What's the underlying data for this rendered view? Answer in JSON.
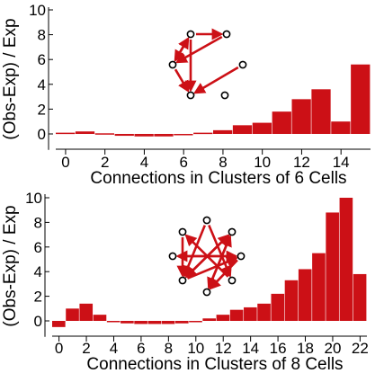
{
  "chart_data": [
    {
      "type": "bar",
      "xlabel": "Connections in Clusters of 6 Cells",
      "ylabel": "(Obs-Exp) / Exp",
      "xlim": [
        0,
        15
      ],
      "ylim": [
        -1,
        10
      ],
      "xticks": [
        "0",
        "2",
        "4",
        "6",
        "8",
        "10",
        "12",
        "14"
      ],
      "yticks": [
        "0",
        "2",
        "4",
        "6",
        "8",
        "10"
      ],
      "bar_color": "#cc1016",
      "x": [
        0,
        1,
        2,
        3,
        4,
        5,
        6,
        7,
        8,
        9,
        10,
        11,
        12,
        13,
        14,
        15
      ],
      "values": [
        0.1,
        0.2,
        0.05,
        -0.15,
        -0.2,
        -0.2,
        -0.05,
        0.1,
        0.3,
        0.7,
        0.9,
        1.8,
        2.8,
        3.6,
        1.0,
        5.6
      ],
      "inset_graph": {
        "node_color": "#000000",
        "edge_color": "#cc1016",
        "nodes": 6,
        "edges": 7
      }
    },
    {
      "type": "bar",
      "xlabel": "Connections in Clusters of 8 Cells",
      "ylabel": "(Obs-Exp) / Exp",
      "xlim": [
        0,
        22
      ],
      "ylim": [
        -1,
        10
      ],
      "xticks": [
        "0",
        "2",
        "4",
        "6",
        "8",
        "10",
        "12",
        "14",
        "16",
        "18",
        "20",
        "22"
      ],
      "yticks": [
        "0",
        "2",
        "4",
        "6",
        "8",
        "10"
      ],
      "bar_color": "#cc1016",
      "x": [
        0,
        1,
        2,
        3,
        4,
        5,
        6,
        7,
        8,
        9,
        10,
        11,
        12,
        13,
        14,
        15,
        16,
        17,
        18,
        19,
        20,
        21,
        22
      ],
      "values": [
        -0.5,
        1.0,
        1.4,
        0.5,
        0.0,
        -0.2,
        -0.25,
        -0.25,
        -0.25,
        -0.2,
        -0.1,
        0.2,
        0.5,
        0.9,
        1.1,
        1.4,
        2.2,
        3.3,
        4.2,
        5.5,
        8.8,
        10.0,
        3.8
      ],
      "inset_graph": {
        "node_color": "#000000",
        "edge_color": "#cc1016",
        "nodes": 8,
        "edges": 12
      }
    }
  ]
}
